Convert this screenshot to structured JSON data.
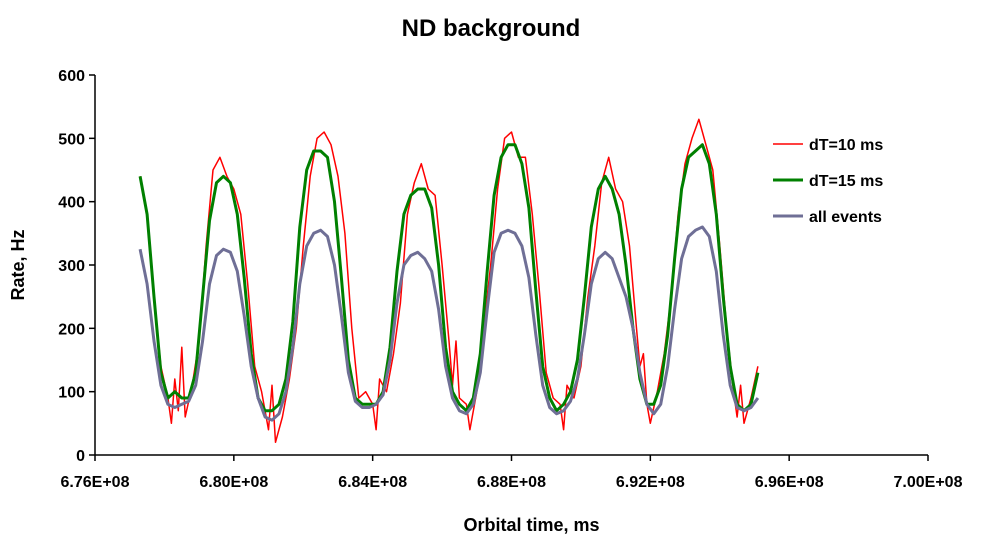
{
  "chart_data": {
    "type": "line",
    "title": "ND background",
    "xlabel": "Orbital time, ms",
    "ylabel": "Rate, Hz",
    "xlim": [
      676000000,
      700000000
    ],
    "ylim": [
      0,
      600
    ],
    "x_ticks": [
      676000000,
      680000000,
      684000000,
      688000000,
      692000000,
      696000000,
      700000000
    ],
    "x_tick_labels": [
      "6.76E+08",
      "6.80E+08",
      "6.84E+08",
      "6.88E+08",
      "6.92E+08",
      "6.96E+08",
      "7.00E+08"
    ],
    "y_ticks": [
      0,
      100,
      200,
      300,
      400,
      500,
      600
    ],
    "y_tick_labels": [
      "0",
      "100",
      "200",
      "300",
      "400",
      "500",
      "600"
    ],
    "grid": false,
    "legend_position": "right",
    "series": [
      {
        "name": "dT=10 ms",
        "color": "#ff0000",
        "points": [
          [
            677300000,
            440
          ],
          [
            677500000,
            380
          ],
          [
            677700000,
            250
          ],
          [
            677900000,
            140
          ],
          [
            678100000,
            90
          ],
          [
            678200000,
            50
          ],
          [
            678300000,
            120
          ],
          [
            678400000,
            70
          ],
          [
            678500000,
            170
          ],
          [
            678600000,
            60
          ],
          [
            678800000,
            110
          ],
          [
            679000000,
            180
          ],
          [
            679200000,
            330
          ],
          [
            679400000,
            450
          ],
          [
            679600000,
            470
          ],
          [
            679800000,
            440
          ],
          [
            680000000,
            420
          ],
          [
            680200000,
            380
          ],
          [
            680400000,
            270
          ],
          [
            680600000,
            140
          ],
          [
            680800000,
            100
          ],
          [
            681000000,
            40
          ],
          [
            681100000,
            110
          ],
          [
            681200000,
            20
          ],
          [
            681400000,
            60
          ],
          [
            681600000,
            120
          ],
          [
            681800000,
            200
          ],
          [
            682000000,
            330
          ],
          [
            682200000,
            440
          ],
          [
            682400000,
            500
          ],
          [
            682600000,
            510
          ],
          [
            682800000,
            490
          ],
          [
            683000000,
            440
          ],
          [
            683200000,
            350
          ],
          [
            683400000,
            200
          ],
          [
            683600000,
            90
          ],
          [
            683800000,
            100
          ],
          [
            684000000,
            80
          ],
          [
            684100000,
            40
          ],
          [
            684200000,
            120
          ],
          [
            684400000,
            100
          ],
          [
            684600000,
            160
          ],
          [
            684800000,
            240
          ],
          [
            685000000,
            380
          ],
          [
            685200000,
            430
          ],
          [
            685400000,
            460
          ],
          [
            685600000,
            420
          ],
          [
            685800000,
            410
          ],
          [
            686000000,
            300
          ],
          [
            686200000,
            180
          ],
          [
            686300000,
            110
          ],
          [
            686400000,
            180
          ],
          [
            686500000,
            90
          ],
          [
            686700000,
            80
          ],
          [
            686800000,
            40
          ],
          [
            687000000,
            100
          ],
          [
            687200000,
            200
          ],
          [
            687400000,
            300
          ],
          [
            687600000,
            420
          ],
          [
            687800000,
            500
          ],
          [
            688000000,
            510
          ],
          [
            688200000,
            470
          ],
          [
            688400000,
            470
          ],
          [
            688600000,
            380
          ],
          [
            688800000,
            260
          ],
          [
            689000000,
            130
          ],
          [
            689200000,
            90
          ],
          [
            689400000,
            80
          ],
          [
            689500000,
            40
          ],
          [
            689600000,
            110
          ],
          [
            689800000,
            90
          ],
          [
            690000000,
            140
          ],
          [
            690200000,
            250
          ],
          [
            690400000,
            330
          ],
          [
            690600000,
            430
          ],
          [
            690800000,
            470
          ],
          [
            691000000,
            420
          ],
          [
            691200000,
            400
          ],
          [
            691400000,
            330
          ],
          [
            691600000,
            200
          ],
          [
            691700000,
            140
          ],
          [
            691800000,
            160
          ],
          [
            691900000,
            80
          ],
          [
            692000000,
            50
          ],
          [
            692200000,
            100
          ],
          [
            692400000,
            160
          ],
          [
            692600000,
            250
          ],
          [
            692800000,
            380
          ],
          [
            693000000,
            460
          ],
          [
            693200000,
            500
          ],
          [
            693400000,
            530
          ],
          [
            693600000,
            490
          ],
          [
            693800000,
            450
          ],
          [
            694000000,
            330
          ],
          [
            694200000,
            200
          ],
          [
            694400000,
            100
          ],
          [
            694500000,
            60
          ],
          [
            694600000,
            110
          ],
          [
            694700000,
            50
          ],
          [
            694900000,
            90
          ],
          [
            695100000,
            140
          ]
        ]
      },
      {
        "name": "dT=15 ms",
        "color": "#008000",
        "points": [
          [
            677300000,
            440
          ],
          [
            677500000,
            380
          ],
          [
            677700000,
            250
          ],
          [
            677900000,
            130
          ],
          [
            678100000,
            90
          ],
          [
            678300000,
            100
          ],
          [
            678500000,
            90
          ],
          [
            678700000,
            90
          ],
          [
            678900000,
            130
          ],
          [
            679100000,
            250
          ],
          [
            679300000,
            370
          ],
          [
            679500000,
            430
          ],
          [
            679700000,
            440
          ],
          [
            679900000,
            430
          ],
          [
            680100000,
            380
          ],
          [
            680300000,
            280
          ],
          [
            680500000,
            160
          ],
          [
            680700000,
            90
          ],
          [
            680900000,
            70
          ],
          [
            681100000,
            70
          ],
          [
            681300000,
            80
          ],
          [
            681500000,
            120
          ],
          [
            681700000,
            210
          ],
          [
            681900000,
            360
          ],
          [
            682100000,
            450
          ],
          [
            682300000,
            480
          ],
          [
            682500000,
            480
          ],
          [
            682700000,
            470
          ],
          [
            682900000,
            400
          ],
          [
            683100000,
            280
          ],
          [
            683300000,
            150
          ],
          [
            683500000,
            90
          ],
          [
            683700000,
            80
          ],
          [
            683900000,
            80
          ],
          [
            684100000,
            80
          ],
          [
            684300000,
            100
          ],
          [
            684500000,
            170
          ],
          [
            684700000,
            290
          ],
          [
            684900000,
            380
          ],
          [
            685100000,
            410
          ],
          [
            685300000,
            420
          ],
          [
            685500000,
            420
          ],
          [
            685700000,
            390
          ],
          [
            685900000,
            300
          ],
          [
            686100000,
            170
          ],
          [
            686300000,
            100
          ],
          [
            686500000,
            80
          ],
          [
            686700000,
            70
          ],
          [
            686900000,
            90
          ],
          [
            687100000,
            160
          ],
          [
            687300000,
            290
          ],
          [
            687500000,
            410
          ],
          [
            687700000,
            470
          ],
          [
            687900000,
            490
          ],
          [
            688100000,
            490
          ],
          [
            688300000,
            460
          ],
          [
            688500000,
            390
          ],
          [
            688700000,
            260
          ],
          [
            688900000,
            140
          ],
          [
            689100000,
            90
          ],
          [
            689300000,
            70
          ],
          [
            689500000,
            80
          ],
          [
            689700000,
            100
          ],
          [
            689900000,
            150
          ],
          [
            690100000,
            250
          ],
          [
            690300000,
            360
          ],
          [
            690500000,
            420
          ],
          [
            690700000,
            440
          ],
          [
            690900000,
            420
          ],
          [
            691100000,
            380
          ],
          [
            691300000,
            300
          ],
          [
            691500000,
            200
          ],
          [
            691700000,
            120
          ],
          [
            691900000,
            80
          ],
          [
            692100000,
            80
          ],
          [
            692300000,
            110
          ],
          [
            692500000,
            190
          ],
          [
            692700000,
            310
          ],
          [
            692900000,
            420
          ],
          [
            693100000,
            470
          ],
          [
            693300000,
            480
          ],
          [
            693500000,
            490
          ],
          [
            693700000,
            460
          ],
          [
            693900000,
            380
          ],
          [
            694100000,
            250
          ],
          [
            694300000,
            140
          ],
          [
            694500000,
            80
          ],
          [
            694700000,
            70
          ],
          [
            694900000,
            80
          ],
          [
            695100000,
            130
          ]
        ]
      },
      {
        "name": "all events",
        "color": "#6f6f96",
        "points": [
          [
            677300000,
            325
          ],
          [
            677500000,
            270
          ],
          [
            677700000,
            180
          ],
          [
            677900000,
            110
          ],
          [
            678100000,
            80
          ],
          [
            678300000,
            75
          ],
          [
            678500000,
            80
          ],
          [
            678700000,
            85
          ],
          [
            678900000,
            110
          ],
          [
            679100000,
            180
          ],
          [
            679300000,
            270
          ],
          [
            679500000,
            315
          ],
          [
            679700000,
            325
          ],
          [
            679900000,
            320
          ],
          [
            680100000,
            290
          ],
          [
            680300000,
            220
          ],
          [
            680500000,
            140
          ],
          [
            680700000,
            90
          ],
          [
            680900000,
            60
          ],
          [
            681100000,
            55
          ],
          [
            681300000,
            65
          ],
          [
            681500000,
            100
          ],
          [
            681700000,
            170
          ],
          [
            681900000,
            270
          ],
          [
            682100000,
            330
          ],
          [
            682300000,
            350
          ],
          [
            682500000,
            355
          ],
          [
            682700000,
            345
          ],
          [
            682900000,
            300
          ],
          [
            683100000,
            220
          ],
          [
            683300000,
            130
          ],
          [
            683500000,
            85
          ],
          [
            683700000,
            75
          ],
          [
            683900000,
            75
          ],
          [
            684100000,
            80
          ],
          [
            684300000,
            95
          ],
          [
            684500000,
            150
          ],
          [
            684700000,
            240
          ],
          [
            684900000,
            300
          ],
          [
            685100000,
            315
          ],
          [
            685300000,
            320
          ],
          [
            685500000,
            310
          ],
          [
            685700000,
            290
          ],
          [
            685900000,
            230
          ],
          [
            686100000,
            140
          ],
          [
            686300000,
            90
          ],
          [
            686500000,
            70
          ],
          [
            686700000,
            65
          ],
          [
            686900000,
            80
          ],
          [
            687100000,
            130
          ],
          [
            687300000,
            230
          ],
          [
            687500000,
            320
          ],
          [
            687700000,
            350
          ],
          [
            687900000,
            355
          ],
          [
            688100000,
            350
          ],
          [
            688300000,
            330
          ],
          [
            688500000,
            280
          ],
          [
            688700000,
            190
          ],
          [
            688900000,
            110
          ],
          [
            689100000,
            75
          ],
          [
            689300000,
            65
          ],
          [
            689500000,
            70
          ],
          [
            689700000,
            85
          ],
          [
            689900000,
            120
          ],
          [
            690100000,
            190
          ],
          [
            690300000,
            270
          ],
          [
            690500000,
            310
          ],
          [
            690700000,
            320
          ],
          [
            690900000,
            310
          ],
          [
            691100000,
            280
          ],
          [
            691300000,
            250
          ],
          [
            691500000,
            200
          ],
          [
            691700000,
            130
          ],
          [
            691900000,
            80
          ],
          [
            692100000,
            65
          ],
          [
            692300000,
            80
          ],
          [
            692500000,
            140
          ],
          [
            692700000,
            230
          ],
          [
            692900000,
            310
          ],
          [
            693100000,
            345
          ],
          [
            693300000,
            355
          ],
          [
            693500000,
            360
          ],
          [
            693700000,
            345
          ],
          [
            693900000,
            290
          ],
          [
            694100000,
            190
          ],
          [
            694300000,
            110
          ],
          [
            694500000,
            75
          ],
          [
            694700000,
            70
          ],
          [
            694900000,
            75
          ],
          [
            695100000,
            90
          ]
        ]
      }
    ]
  }
}
